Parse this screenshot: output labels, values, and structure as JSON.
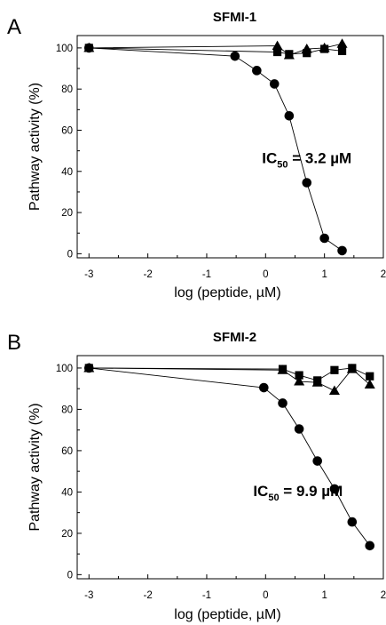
{
  "chart_data": [
    {
      "type": "line",
      "panel_label": "A",
      "title": "SFMI-1",
      "xlabel": "log (peptide, µM)",
      "ylabel": "Pathway activity (%)",
      "xlim": [
        -3.2,
        2
      ],
      "ylim": [
        -2,
        106
      ],
      "xticks": [
        -3,
        -2,
        -1,
        0,
        1,
        2
      ],
      "yticks": [
        0,
        20,
        40,
        60,
        80,
        100
      ],
      "annotation": {
        "prefix": "IC",
        "subscript": "50",
        "suffix": " = 3.2 µM",
        "x": 0.7,
        "y": 44
      },
      "series": [
        {
          "marker": "circle",
          "x": [
            -3,
            -0.52,
            -0.15,
            0.15,
            0.4,
            0.7,
            1.0,
            1.3
          ],
          "y": [
            100,
            96,
            89,
            82.5,
            67,
            34.5,
            7.5,
            1.5
          ]
        },
        {
          "marker": "square",
          "x": [
            -3,
            0.2,
            0.4,
            0.7,
            1.0,
            1.3
          ],
          "y": [
            100,
            98,
            97,
            97.5,
            99.5,
            98.5
          ]
        },
        {
          "marker": "triangle",
          "x": [
            -3,
            0.2,
            0.4,
            0.7,
            1.0,
            1.3
          ],
          "y": [
            100,
            101,
            96.5,
            99.5,
            100,
            102
          ]
        }
      ]
    },
    {
      "type": "line",
      "panel_label": "B",
      "title": "SFMI-2",
      "xlabel": "log (peptide, µM)",
      "ylabel": "Pathway activity (%)",
      "xlim": [
        -3.2,
        2
      ],
      "ylim": [
        -2,
        106
      ],
      "xticks": [
        -3,
        -2,
        -1,
        0,
        1,
        2
      ],
      "yticks": [
        0,
        20,
        40,
        60,
        80,
        100
      ],
      "annotation": {
        "prefix": "IC",
        "subscript": "50",
        "suffix": " = 9.9 µM",
        "x": 0.55,
        "y": 38
      },
      "series": [
        {
          "marker": "circle",
          "x": [
            -3,
            -0.03,
            0.29,
            0.57,
            0.88,
            1.17,
            1.47,
            1.77
          ],
          "y": [
            100,
            90.5,
            83,
            70.5,
            55,
            41.5,
            25.5,
            14
          ]
        },
        {
          "marker": "square",
          "x": [
            -3,
            0.29,
            0.57,
            0.88,
            1.17,
            1.47,
            1.77
          ],
          "y": [
            100,
            99.5,
            96.5,
            94,
            99,
            100,
            96
          ]
        },
        {
          "marker": "triangle",
          "x": [
            -3,
            0.29,
            0.57,
            0.88,
            1.17,
            1.47,
            1.77
          ],
          "y": [
            100,
            99,
            93.5,
            93,
            89,
            99.5,
            92
          ]
        }
      ]
    }
  ]
}
